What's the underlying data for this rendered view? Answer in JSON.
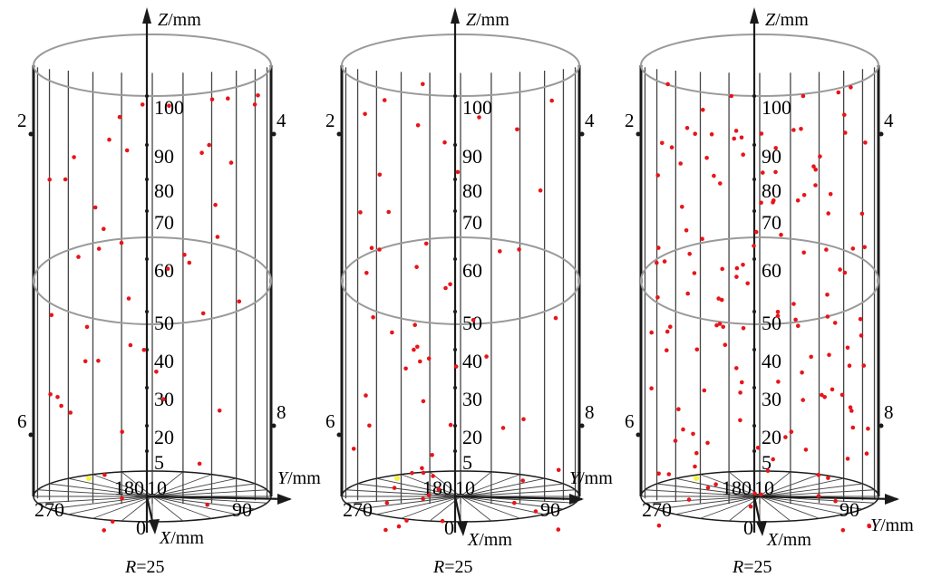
{
  "figure": {
    "panels": [
      {
        "id": "a",
        "z_label": {
          "var": "Z",
          "unit": "/mm"
        },
        "y_label": {
          "var": "Y",
          "unit": "/mm"
        },
        "x_label": {
          "var": "X",
          "unit": "/mm"
        },
        "radius_label": {
          "var": "R",
          "value": "=25"
        },
        "z_ticks": [
          "100",
          "90",
          "80",
          "70",
          "60",
          "50",
          "40",
          "30",
          "20",
          "5"
        ],
        "angle_labels": [
          "270",
          "180",
          "10",
          "90",
          "0"
        ],
        "side_labels": [
          "2",
          "4",
          "6",
          "8"
        ],
        "point_count": 48
      },
      {
        "id": "b",
        "z_label": {
          "var": "Z",
          "unit": "/mm"
        },
        "y_label": {
          "var": "Y",
          "unit": "/mm"
        },
        "x_label": {
          "var": "X",
          "unit": "/mm"
        },
        "radius_label": {
          "var": "R",
          "value": "=25"
        },
        "z_ticks": [
          "100",
          "90",
          "80",
          "70",
          "60",
          "50",
          "40",
          "30",
          "20",
          "5"
        ],
        "angle_labels": [
          "270",
          "180",
          "10",
          "90",
          "0"
        ],
        "side_labels": [
          "2",
          "4",
          "6",
          "8"
        ],
        "point_count": 60
      },
      {
        "id": "c",
        "z_label": {
          "var": "Z",
          "unit": "/mm"
        },
        "y_label": {
          "var": "Y",
          "unit": "/mm"
        },
        "x_label": {
          "var": "X",
          "unit": "/mm"
        },
        "radius_label": {
          "var": "R",
          "value": "=25"
        },
        "z_ticks": [
          "100",
          "90",
          "80",
          "70",
          "60",
          "50",
          "40",
          "30",
          "20",
          "5"
        ],
        "angle_labels": [
          "270",
          "180",
          "10",
          "90",
          "0"
        ],
        "side_labels": [
          "2",
          "4",
          "6",
          "8"
        ],
        "point_count": 140
      }
    ],
    "colors": {
      "frame": "#1a1a1a",
      "grid": "#444444",
      "rim": "#9a9a9a",
      "point": "#e8141a",
      "highlight": "#f5f542"
    }
  }
}
